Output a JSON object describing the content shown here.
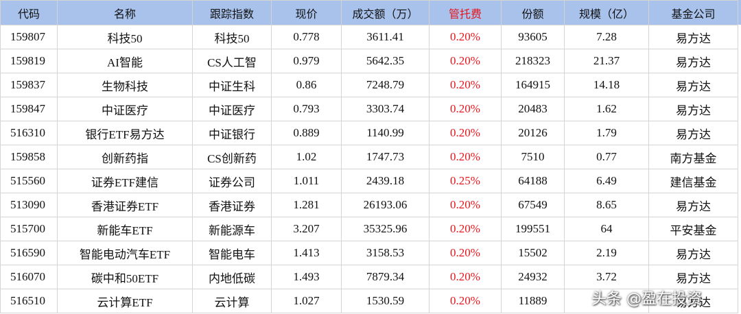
{
  "table": {
    "header": [
      "代码",
      "名称",
      "跟踪指数",
      "现价",
      "成交额（万）",
      "管托费",
      "份额",
      "规模（亿）",
      "基金公司"
    ],
    "rows": [
      [
        "159807",
        "科技50",
        "科技50",
        "0.778",
        "3611.41",
        "0.20%",
        "93605",
        "7.28",
        "易方达"
      ],
      [
        "159819",
        "AI智能",
        "CS人工智",
        "0.979",
        "5642.35",
        "0.20%",
        "218323",
        "21.37",
        "易方达"
      ],
      [
        "159837",
        "生物科技",
        "中证生科",
        "0.86",
        "7248.79",
        "0.20%",
        "164915",
        "14.18",
        "易方达"
      ],
      [
        "159847",
        "中证医疗",
        "中证医疗",
        "0.793",
        "3303.74",
        "0.20%",
        "20483",
        "1.62",
        "易方达"
      ],
      [
        "516310",
        "银行ETF易方达",
        "中证银行",
        "0.889",
        "1140.99",
        "0.20%",
        "20126",
        "1.79",
        "易方达"
      ],
      [
        "159858",
        "创新药指",
        "CS创新药",
        "1.02",
        "1747.73",
        "0.20%",
        "7510",
        "0.77",
        "南方基金"
      ],
      [
        "515560",
        "证券ETF建信",
        "证券公司",
        "1.011",
        "2439.18",
        "0.25%",
        "64188",
        "6.49",
        "建信基金"
      ],
      [
        "513090",
        "香港证券ETF",
        "香港证券",
        "1.281",
        "26193.06",
        "0.20%",
        "67549",
        "8.65",
        "易方达"
      ],
      [
        "515700",
        "新能车ETF",
        "新能源车",
        "3.207",
        "35325.96",
        "0.20%",
        "199551",
        "64",
        "平安基金"
      ],
      [
        "516590",
        "智能电动汽车ETF",
        "智能电车",
        "1.413",
        "3158.53",
        "0.20%",
        "15502",
        "2.19",
        "易方达"
      ],
      [
        "516070",
        "碳中和50ETF",
        "内地低碳",
        "1.493",
        "7879.34",
        "0.20%",
        "24932",
        "3.72",
        "易方达"
      ],
      [
        "516510",
        "云计算ETF",
        "云计算",
        "1.027",
        "1530.59",
        "0.20%",
        "11889",
        "",
        "易方达"
      ]
    ]
  },
  "watermark": "头条 @盈在投资"
}
